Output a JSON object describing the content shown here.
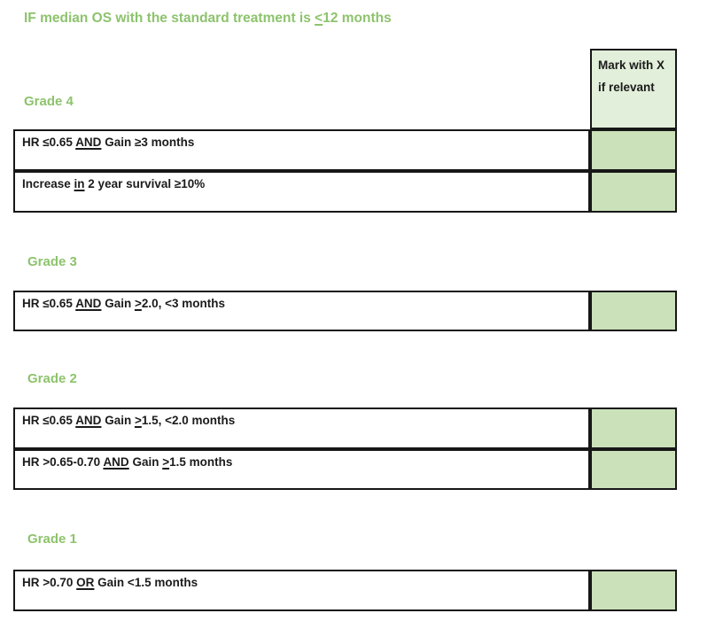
{
  "colors": {
    "accent-green": "#8dc36d",
    "header-fill": "#e2efda",
    "cell-fill": "#cbe1ba",
    "border-color": "#171717"
  },
  "title": {
    "segments": [
      {
        "t": "IF median OS with the standard treatment is "
      },
      {
        "t": "<",
        "u": true
      },
      {
        "t": "12 months"
      }
    ]
  },
  "mark_column": {
    "header_label": "Mark with X if relevant"
  },
  "sections": [
    {
      "grade_label": "Grade 4",
      "rows": [
        {
          "segments": [
            {
              "t": "HR ≤0.65 "
            },
            {
              "t": "AND",
              "u": true
            },
            {
              "t": " Gain ≥3 months"
            }
          ]
        },
        {
          "segments": [
            {
              "t": "Increase "
            },
            {
              "t": "in",
              "u": true
            },
            {
              "t": " 2 year survival ≥10%"
            }
          ]
        }
      ]
    },
    {
      "grade_label": "Grade 3",
      "rows": [
        {
          "segments": [
            {
              "t": "HR ≤0.65 "
            },
            {
              "t": "AND",
              "u": true
            },
            {
              "t": " Gain "
            },
            {
              "t": ">",
              "u": true
            },
            {
              "t": "2.0, <3 months"
            }
          ]
        }
      ]
    },
    {
      "grade_label": "Grade 2",
      "rows": [
        {
          "segments": [
            {
              "t": "HR ≤0.65 "
            },
            {
              "t": "AND",
              "u": true
            },
            {
              "t": " Gain "
            },
            {
              "t": ">",
              "u": true
            },
            {
              "t": "1.5, <2.0 months"
            }
          ]
        },
        {
          "segments": [
            {
              "t": "HR >0.65-0.70 "
            },
            {
              "t": "AND",
              "u": true
            },
            {
              "t": " Gain "
            },
            {
              "t": ">",
              "u": true
            },
            {
              "t": "1.5 months"
            }
          ]
        }
      ]
    },
    {
      "grade_label": "Grade 1",
      "rows": [
        {
          "segments": [
            {
              "t": "HR >0.70 "
            },
            {
              "t": "OR",
              "u": true
            },
            {
              "t": " Gain <1.5 months"
            }
          ]
        }
      ]
    }
  ]
}
